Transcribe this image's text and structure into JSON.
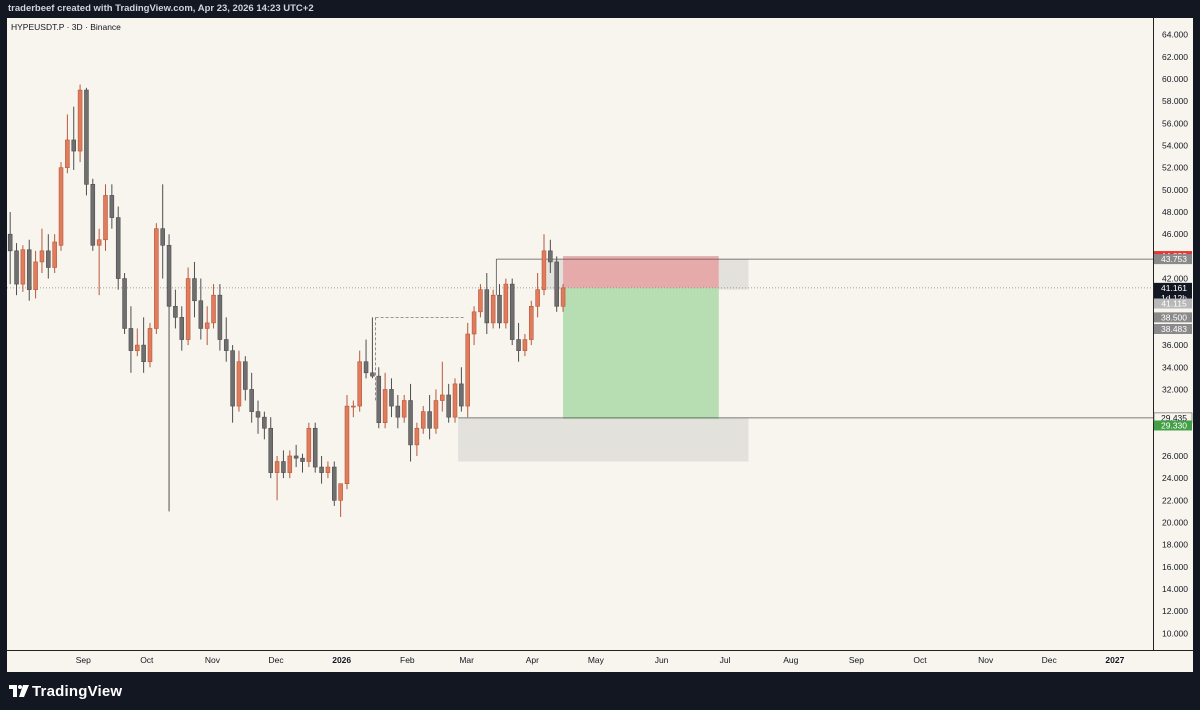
{
  "header": {
    "attribution": "traderbeef created with TradingView.com, Apr 23, 2026 14:23 UTC+2"
  },
  "symbol_line": "HYPEUSDT.P · 3D · Binance",
  "footer": {
    "brand": "TradingView"
  },
  "colors": {
    "background": "#f8f5ee",
    "up_candle": "#e07b5c",
    "down_candle": "#6f6f6f",
    "stop_zone": "#e8a4a4",
    "target_zone": "#b3dbae",
    "grey_zone": "#deddd8",
    "label_red": "#e53935",
    "label_green": "#43a047",
    "label_dark": "#131722",
    "label_grey": "#8a8a8a"
  },
  "chart_data": {
    "type": "candlestick",
    "symbol": "HYPEUSDT.P",
    "timeframe": "3D",
    "exchange": "Binance",
    "y_range": [
      8.5,
      65.5
    ],
    "y_ticks": [
      "64.000",
      "62.000",
      "60.000",
      "58.000",
      "56.000",
      "54.000",
      "52.000",
      "50.000",
      "48.000",
      "46.000",
      "42.000",
      "36.000",
      "34.000",
      "32.000",
      "26.000",
      "24.000",
      "22.000",
      "20.000",
      "18.000",
      "16.000",
      "14.000",
      "12.000",
      "10.000"
    ],
    "y_tick_values": [
      64,
      62,
      60,
      58,
      56,
      54,
      52,
      50,
      48,
      46,
      42,
      36,
      34,
      32,
      26,
      24,
      22,
      20,
      18,
      16,
      14,
      12,
      10
    ],
    "x_labels": [
      {
        "label": "Sep",
        "date": "2025-09-01"
      },
      {
        "label": "Oct",
        "date": "2025-10-01"
      },
      {
        "label": "Nov",
        "date": "2025-11-01"
      },
      {
        "label": "Dec",
        "date": "2025-12-01"
      },
      {
        "label": "2026",
        "date": "2026-01-01"
      },
      {
        "label": "Feb",
        "date": "2026-02-01"
      },
      {
        "label": "Mar",
        "date": "2026-03-01"
      },
      {
        "label": "Apr",
        "date": "2026-04-01"
      },
      {
        "label": "May",
        "date": "2026-05-01"
      },
      {
        "label": "Jun",
        "date": "2026-06-01"
      },
      {
        "label": "Jul",
        "date": "2026-07-01"
      },
      {
        "label": "Aug",
        "date": "2026-08-01"
      },
      {
        "label": "Sep",
        "date": "2026-09-01"
      },
      {
        "label": "Oct",
        "date": "2026-10-01"
      },
      {
        "label": "Nov",
        "date": "2026-11-01"
      },
      {
        "label": "Dec",
        "date": "2026-12-01"
      },
      {
        "label": "2027",
        "date": "2027-01-01"
      }
    ],
    "x_range": [
      "2025-07-27",
      "2027-01-19"
    ],
    "candles": [
      {
        "t": "2025-07-27",
        "o": 46.0,
        "h": 48.0,
        "l": 41.5,
        "c": 44.5
      },
      {
        "t": "2025-07-30",
        "o": 44.5,
        "h": 45.2,
        "l": 40.5,
        "c": 41.5
      },
      {
        "t": "2025-08-02",
        "o": 41.5,
        "h": 45.0,
        "l": 40.8,
        "c": 44.6
      },
      {
        "t": "2025-08-05",
        "o": 44.6,
        "h": 45.5,
        "l": 40.0,
        "c": 41.0
      },
      {
        "t": "2025-08-08",
        "o": 41.0,
        "h": 44.5,
        "l": 40.2,
        "c": 43.5
      },
      {
        "t": "2025-08-11",
        "o": 43.5,
        "h": 46.5,
        "l": 42.5,
        "c": 44.5
      },
      {
        "t": "2025-08-14",
        "o": 44.5,
        "h": 46.0,
        "l": 42.0,
        "c": 43.0
      },
      {
        "t": "2025-08-17",
        "o": 43.0,
        "h": 46.0,
        "l": 42.5,
        "c": 45.3
      },
      {
        "t": "2025-08-20",
        "o": 45.0,
        "h": 52.5,
        "l": 44.5,
        "c": 52.0
      },
      {
        "t": "2025-08-23",
        "o": 52.0,
        "h": 56.8,
        "l": 51.5,
        "c": 54.5
      },
      {
        "t": "2025-08-26",
        "o": 54.5,
        "h": 57.5,
        "l": 51.8,
        "c": 53.5
      },
      {
        "t": "2025-08-29",
        "o": 53.5,
        "h": 59.5,
        "l": 52.5,
        "c": 59.0
      },
      {
        "t": "2025-09-01",
        "o": 59.0,
        "h": 59.2,
        "l": 49.5,
        "c": 50.5
      },
      {
        "t": "2025-09-04",
        "o": 50.5,
        "h": 51.0,
        "l": 44.5,
        "c": 45.0
      },
      {
        "t": "2025-09-07",
        "o": 45.0,
        "h": 46.5,
        "l": 40.5,
        "c": 45.5
      },
      {
        "t": "2025-09-10",
        "o": 45.5,
        "h": 50.5,
        "l": 44.5,
        "c": 49.5
      },
      {
        "t": "2025-09-13",
        "o": 49.5,
        "h": 50.5,
        "l": 46.5,
        "c": 47.5
      },
      {
        "t": "2025-09-16",
        "o": 47.5,
        "h": 48.5,
        "l": 41.0,
        "c": 42.0
      },
      {
        "t": "2025-09-19",
        "o": 42.0,
        "h": 42.5,
        "l": 37.0,
        "c": 37.5
      },
      {
        "t": "2025-09-22",
        "o": 37.5,
        "h": 39.5,
        "l": 33.5,
        "c": 35.5
      },
      {
        "t": "2025-09-25",
        "o": 35.5,
        "h": 37.5,
        "l": 35.0,
        "c": 36.0
      },
      {
        "t": "2025-09-28",
        "o": 36.0,
        "h": 38.5,
        "l": 33.5,
        "c": 34.5
      },
      {
        "t": "2025-10-01",
        "o": 34.5,
        "h": 38.0,
        "l": 34.0,
        "c": 37.5
      },
      {
        "t": "2025-10-04",
        "o": 37.5,
        "h": 47.0,
        "l": 37.0,
        "c": 46.5
      },
      {
        "t": "2025-10-07",
        "o": 46.5,
        "h": 50.5,
        "l": 42.0,
        "c": 45.0
      },
      {
        "t": "2025-10-10",
        "o": 45.0,
        "h": 46.0,
        "l": 21.0,
        "c": 39.5
      },
      {
        "t": "2025-10-13",
        "o": 39.5,
        "h": 41.0,
        "l": 37.5,
        "c": 38.5
      },
      {
        "t": "2025-10-16",
        "o": 38.5,
        "h": 39.5,
        "l": 35.5,
        "c": 36.5
      },
      {
        "t": "2025-10-19",
        "o": 36.5,
        "h": 43.0,
        "l": 36.0,
        "c": 42.0
      },
      {
        "t": "2025-10-22",
        "o": 42.0,
        "h": 43.5,
        "l": 38.5,
        "c": 40.0
      },
      {
        "t": "2025-10-25",
        "o": 40.0,
        "h": 42.0,
        "l": 36.5,
        "c": 37.5
      },
      {
        "t": "2025-10-28",
        "o": 37.5,
        "h": 39.5,
        "l": 36.0,
        "c": 38.0
      },
      {
        "t": "2025-10-31",
        "o": 38.0,
        "h": 41.5,
        "l": 37.5,
        "c": 40.5
      },
      {
        "t": "2025-11-03",
        "o": 40.5,
        "h": 41.5,
        "l": 35.5,
        "c": 36.5
      },
      {
        "t": "2025-11-06",
        "o": 36.5,
        "h": 38.5,
        "l": 34.5,
        "c": 35.5
      },
      {
        "t": "2025-11-09",
        "o": 35.5,
        "h": 36.0,
        "l": 29.0,
        "c": 30.5
      },
      {
        "t": "2025-11-12",
        "o": 30.5,
        "h": 35.5,
        "l": 30.0,
        "c": 34.5
      },
      {
        "t": "2025-11-15",
        "o": 34.5,
        "h": 35.0,
        "l": 31.0,
        "c": 32.0
      },
      {
        "t": "2025-11-18",
        "o": 32.0,
        "h": 33.5,
        "l": 29.0,
        "c": 30.0
      },
      {
        "t": "2025-11-21",
        "o": 30.0,
        "h": 31.0,
        "l": 28.0,
        "c": 29.5
      },
      {
        "t": "2025-11-24",
        "o": 29.5,
        "h": 30.0,
        "l": 27.5,
        "c": 28.5
      },
      {
        "t": "2025-11-27",
        "o": 28.5,
        "h": 29.5,
        "l": 24.0,
        "c": 24.5
      },
      {
        "t": "2025-11-30",
        "o": 24.5,
        "h": 26.0,
        "l": 22.0,
        "c": 25.5
      },
      {
        "t": "2025-12-03",
        "o": 25.5,
        "h": 26.5,
        "l": 24.0,
        "c": 24.5
      },
      {
        "t": "2025-12-06",
        "o": 24.5,
        "h": 26.5,
        "l": 24.0,
        "c": 26.0
      },
      {
        "t": "2025-12-09",
        "o": 26.0,
        "h": 27.0,
        "l": 25.0,
        "c": 25.8
      },
      {
        "t": "2025-12-12",
        "o": 25.8,
        "h": 26.2,
        "l": 24.5,
        "c": 25.5
      },
      {
        "t": "2025-12-15",
        "o": 25.5,
        "h": 29.0,
        "l": 25.0,
        "c": 28.5
      },
      {
        "t": "2025-12-18",
        "o": 28.5,
        "h": 29.0,
        "l": 24.5,
        "c": 25.0
      },
      {
        "t": "2025-12-21",
        "o": 25.0,
        "h": 26.0,
        "l": 23.5,
        "c": 24.5
      },
      {
        "t": "2025-12-24",
        "o": 24.5,
        "h": 25.5,
        "l": 24.0,
        "c": 25.0
      },
      {
        "t": "2025-12-27",
        "o": 25.0,
        "h": 25.5,
        "l": 21.5,
        "c": 22.0
      },
      {
        "t": "2025-12-30",
        "o": 22.0,
        "h": 23.5,
        "l": 20.5,
        "c": 23.5
      },
      {
        "t": "2026-01-02",
        "o": 23.5,
        "h": 31.5,
        "l": 23.0,
        "c": 30.5
      },
      {
        "t": "2026-01-05",
        "o": 30.5,
        "h": 31.0,
        "l": 29.5,
        "c": 30.5
      },
      {
        "t": "2026-01-08",
        "o": 30.5,
        "h": 35.5,
        "l": 30.0,
        "c": 34.5
      },
      {
        "t": "2026-01-11",
        "o": 34.5,
        "h": 36.5,
        "l": 33.0,
        "c": 33.5
      },
      {
        "t": "2026-01-14",
        "o": 33.5,
        "h": 38.5,
        "l": 33.0,
        "c": 33.2
      },
      {
        "t": "2026-01-17",
        "o": 33.2,
        "h": 34.0,
        "l": 28.5,
        "c": 29.0
      },
      {
        "t": "2026-01-20",
        "o": 29.0,
        "h": 33.5,
        "l": 28.5,
        "c": 32.0
      },
      {
        "t": "2026-01-23",
        "o": 32.0,
        "h": 33.0,
        "l": 29.5,
        "c": 30.5
      },
      {
        "t": "2026-01-26",
        "o": 30.5,
        "h": 31.5,
        "l": 28.5,
        "c": 29.5
      },
      {
        "t": "2026-01-29",
        "o": 29.5,
        "h": 31.5,
        "l": 29.0,
        "c": 31.0
      },
      {
        "t": "2026-02-01",
        "o": 31.0,
        "h": 32.5,
        "l": 25.5,
        "c": 27.0
      },
      {
        "t": "2026-02-04",
        "o": 27.0,
        "h": 29.0,
        "l": 26.0,
        "c": 28.5
      },
      {
        "t": "2026-02-07",
        "o": 28.5,
        "h": 30.5,
        "l": 28.0,
        "c": 30.0
      },
      {
        "t": "2026-02-10",
        "o": 30.0,
        "h": 31.5,
        "l": 27.5,
        "c": 28.5
      },
      {
        "t": "2026-02-13",
        "o": 28.5,
        "h": 32.0,
        "l": 28.0,
        "c": 31.0
      },
      {
        "t": "2026-02-16",
        "o": 31.0,
        "h": 34.5,
        "l": 30.0,
        "c": 31.5
      },
      {
        "t": "2026-02-19",
        "o": 31.5,
        "h": 32.5,
        "l": 29.0,
        "c": 29.5
      },
      {
        "t": "2026-02-22",
        "o": 29.5,
        "h": 33.0,
        "l": 29.0,
        "c": 32.5
      },
      {
        "t": "2026-02-25",
        "o": 32.5,
        "h": 34.0,
        "l": 30.0,
        "c": 30.5
      },
      {
        "t": "2026-02-28",
        "o": 30.5,
        "h": 38.0,
        "l": 29.5,
        "c": 37.0
      },
      {
        "t": "2026-03-03",
        "o": 37.0,
        "h": 39.5,
        "l": 36.0,
        "c": 39.0
      },
      {
        "t": "2026-03-06",
        "o": 39.0,
        "h": 41.5,
        "l": 38.5,
        "c": 41.0
      },
      {
        "t": "2026-03-09",
        "o": 41.0,
        "h": 42.5,
        "l": 37.0,
        "c": 38.0
      },
      {
        "t": "2026-03-12",
        "o": 38.0,
        "h": 41.0,
        "l": 37.5,
        "c": 40.5
      },
      {
        "t": "2026-03-15",
        "o": 40.5,
        "h": 41.5,
        "l": 37.5,
        "c": 38.0
      },
      {
        "t": "2026-03-18",
        "o": 38.0,
        "h": 42.0,
        "l": 37.5,
        "c": 41.5
      },
      {
        "t": "2026-03-21",
        "o": 41.5,
        "h": 42.0,
        "l": 36.0,
        "c": 36.5
      },
      {
        "t": "2026-03-24",
        "o": 36.5,
        "h": 38.0,
        "l": 34.5,
        "c": 35.5
      },
      {
        "t": "2026-03-27",
        "o": 35.5,
        "h": 37.0,
        "l": 35.0,
        "c": 36.5
      },
      {
        "t": "2026-03-30",
        "o": 36.5,
        "h": 40.0,
        "l": 36.0,
        "c": 39.5
      },
      {
        "t": "2026-04-02",
        "o": 39.5,
        "h": 42.5,
        "l": 38.5,
        "c": 41.0
      },
      {
        "t": "2026-04-05",
        "o": 41.0,
        "h": 46.0,
        "l": 40.5,
        "c": 44.5
      },
      {
        "t": "2026-04-08",
        "o": 44.5,
        "h": 45.5,
        "l": 42.5,
        "c": 43.5
      },
      {
        "t": "2026-04-11",
        "o": 43.5,
        "h": 44.0,
        "l": 39.0,
        "c": 39.5
      },
      {
        "t": "2026-04-14",
        "o": 39.5,
        "h": 41.5,
        "l": 39.0,
        "c": 41.16
      }
    ],
    "position_tool": {
      "type": "short",
      "entry": 41.161,
      "stop": 44.03,
      "target": 29.33,
      "start": "2026-04-14",
      "end": "2026-06-28"
    },
    "zones": [
      {
        "kind": "grey",
        "from": "2026-04-08",
        "to": "2026-07-12",
        "low": 41.0,
        "high": 43.753
      },
      {
        "kind": "grey",
        "from": "2026-02-25",
        "to": "2026-07-12",
        "low": 25.5,
        "high": 29.435
      }
    ],
    "lines": [
      {
        "kind": "solid",
        "price": 43.753,
        "from": "2026-03-15",
        "to": "2027-01-19"
      },
      {
        "kind": "solid",
        "price": 29.435,
        "from": "2026-02-25",
        "to": "2027-01-19"
      },
      {
        "kind": "dotted",
        "price": 41.161,
        "from": "2025-07-27",
        "to": "2027-01-19"
      },
      {
        "kind": "dashed-bracket",
        "price": 38.5,
        "from": "2026-01-17",
        "to": "2026-02-28",
        "low": 31.0
      }
    ],
    "price_labels": [
      {
        "text": "44.030",
        "price": 44.03,
        "style": "red"
      },
      {
        "text": "43.753",
        "price": 43.753,
        "style": "grey"
      },
      {
        "text": "41.161",
        "sub": "1d 12h",
        "price": 41.161,
        "style": "dark"
      },
      {
        "text": "41.115",
        "price": 39.75,
        "style": "light"
      },
      {
        "text": "38.500",
        "price": 38.5,
        "style": "grey"
      },
      {
        "text": "38.483",
        "price": 37.45,
        "style": "grey"
      },
      {
        "text": "29.435",
        "price": 29.435,
        "style": "outline"
      },
      {
        "text": "29.330",
        "price": 28.75,
        "style": "green"
      }
    ]
  }
}
